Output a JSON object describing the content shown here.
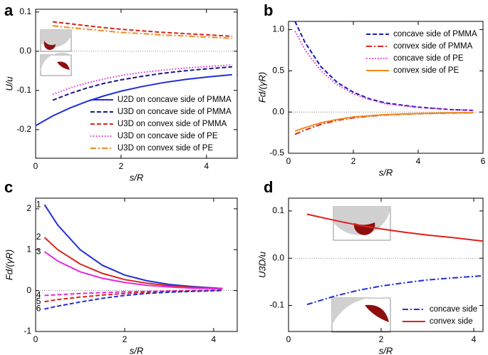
{
  "chart_data": [
    {
      "type": "line",
      "label": "a",
      "xlabel": "s/R",
      "ylabel": "U/u",
      "xlim": [
        0,
        4.72
      ],
      "ylim": [
        -0.273,
        0.107
      ],
      "xticks": [
        0,
        2,
        4
      ],
      "yticks": [
        0.1,
        {
          "value": 0,
          "label": "0.0"
        },
        -0.1,
        -0.2
      ],
      "legend": "lower right",
      "x": [
        0,
        0.4,
        0.8,
        1.2,
        1.6,
        2,
        2.5,
        3,
        3.5,
        4,
        4.6
      ],
      "series": [
        {
          "name": "U2D on concave side of PMMA",
          "color": "#1f2fd6",
          "dash": "solid",
          "values": [
            -0.19,
            -0.165,
            -0.145,
            -0.128,
            -0.114,
            -0.102,
            -0.09,
            -0.08,
            -0.072,
            -0.066,
            -0.06
          ]
        },
        {
          "name": "U3D on concave side of PMMA",
          "color": "#1a1a80",
          "dash": "dash",
          "values": [
            null,
            -0.125,
            -0.108,
            -0.094,
            -0.082,
            -0.073,
            -0.064,
            -0.056,
            -0.05,
            -0.045,
            -0.04
          ]
        },
        {
          "name": "U3D on convex side of PMMA",
          "color": "#d9261c",
          "dash": "dash",
          "values": [
            null,
            0.075,
            0.07,
            0.065,
            0.06,
            0.056,
            0.052,
            0.048,
            0.045,
            0.042,
            0.038
          ]
        },
        {
          "name": "U3D on concave side of PE",
          "color": "#e02be0",
          "dash": "dot",
          "values": [
            null,
            -0.11,
            -0.094,
            -0.081,
            -0.071,
            -0.062,
            -0.054,
            -0.048,
            -0.043,
            -0.039,
            -0.035
          ]
        },
        {
          "name": "U3D on convex side of PE",
          "color": "#f08a1c",
          "dash": "dashdot",
          "values": [
            null,
            0.065,
            0.06,
            0.056,
            0.052,
            0.048,
            0.045,
            0.041,
            0.039,
            0.036,
            0.033
          ]
        }
      ]
    },
    {
      "type": "line",
      "label": "b",
      "xlabel": "s/R",
      "ylabel": "Fd/(γR)",
      "xlim": [
        0,
        6
      ],
      "ylim": [
        -0.5,
        1.1
      ],
      "xticks": [
        0,
        2,
        4,
        6
      ],
      "yticks": [
        {
          "value": 1,
          "label": "1.0"
        },
        0.5,
        {
          "value": 0,
          "label": "0.0"
        },
        -0.5
      ],
      "legend": "upper right",
      "x": [
        0.2,
        0.5,
        1,
        1.5,
        2,
        2.5,
        3,
        4,
        5,
        5.7
      ],
      "series": [
        {
          "name": "concave side of PMMA",
          "color": "#1a1ab0",
          "dash": "dash",
          "values": [
            1.1,
            0.85,
            0.55,
            0.36,
            0.24,
            0.16,
            0.11,
            0.06,
            0.03,
            0.02
          ]
        },
        {
          "name": "convex side of PMMA",
          "color": "#d9261c",
          "dash": "dashdot",
          "values": [
            -0.27,
            -0.22,
            -0.15,
            -0.1,
            -0.07,
            -0.05,
            -0.035,
            -0.02,
            -0.012,
            -0.01
          ]
        },
        {
          "name": "concave side of PE",
          "color": "#e02be0",
          "dash": "dot",
          "values": [
            0.98,
            0.76,
            0.5,
            0.33,
            0.22,
            0.15,
            0.1,
            0.055,
            0.03,
            0.02
          ]
        },
        {
          "name": "convex side of PE",
          "color": "#f08a1c",
          "dash": "solid",
          "values": [
            -0.23,
            -0.19,
            -0.13,
            -0.09,
            -0.06,
            -0.045,
            -0.03,
            -0.018,
            -0.01,
            -0.008
          ]
        }
      ]
    },
    {
      "type": "line",
      "label": "c",
      "xlabel": "s/R",
      "ylabel": "Fd/(γR)",
      "xlim": [
        0,
        4.53
      ],
      "ylim": [
        -1,
        2.26
      ],
      "xticks": [
        0,
        2,
        4
      ],
      "yticks": [
        2,
        1,
        0,
        -1
      ],
      "x": [
        0.2,
        0.5,
        1,
        1.5,
        2,
        2.5,
        3,
        3.5,
        4.2
      ],
      "series": [
        {
          "name": "1",
          "color": "#1f2fd6",
          "dash": "solid",
          "values": [
            2.1,
            1.6,
            1.0,
            0.62,
            0.38,
            0.24,
            0.15,
            0.1,
            0.05
          ]
        },
        {
          "name": "2",
          "color": "#d9261c",
          "dash": "solid",
          "values": [
            1.3,
            1.0,
            0.65,
            0.42,
            0.27,
            0.18,
            0.12,
            0.08,
            0.05
          ]
        },
        {
          "name": "3",
          "color": "#e02be0",
          "dash": "solid",
          "values": [
            0.95,
            0.72,
            0.46,
            0.3,
            0.2,
            0.13,
            0.09,
            0.06,
            0.04
          ]
        },
        {
          "name": "4",
          "color": "#e02be0",
          "dash": "dash",
          "values": [
            -0.12,
            -0.1,
            -0.07,
            -0.05,
            -0.03,
            -0.02,
            -0.01,
            0,
            0.01
          ]
        },
        {
          "name": "5",
          "color": "#d9261c",
          "dash": "dash",
          "values": [
            -0.27,
            -0.22,
            -0.16,
            -0.11,
            -0.07,
            -0.04,
            -0.02,
            -0.01,
            0.01
          ]
        },
        {
          "name": "6",
          "color": "#1f2fd6",
          "dash": "dash",
          "values": [
            -0.45,
            -0.38,
            -0.28,
            -0.19,
            -0.12,
            -0.07,
            -0.04,
            -0.02,
            0
          ]
        }
      ]
    },
    {
      "type": "line",
      "label": "d",
      "xlabel": "s/R",
      "ylabel": "U3D/u",
      "xlim": [
        0,
        4.2
      ],
      "ylim": [
        -0.155,
        0.127
      ],
      "xticks": [
        0,
        2,
        4
      ],
      "yticks": [
        0.1,
        {
          "value": 0,
          "label": "0.0"
        },
        -0.1
      ],
      "legend": "lower right",
      "x": [
        0.4,
        1,
        1.5,
        2,
        2.5,
        3,
        3.5,
        4.2
      ],
      "series": [
        {
          "name": "concave side",
          "color": "#1f2fd6",
          "dash": "dashdot",
          "values": [
            -0.098,
            -0.08,
            -0.068,
            -0.059,
            -0.052,
            -0.046,
            -0.042,
            -0.037
          ]
        },
        {
          "name": "convex side",
          "color": "#e0201c",
          "dash": "solid",
          "values": [
            0.093,
            0.08,
            0.07,
            0.062,
            0.055,
            0.049,
            0.044,
            0.036
          ]
        }
      ]
    }
  ]
}
